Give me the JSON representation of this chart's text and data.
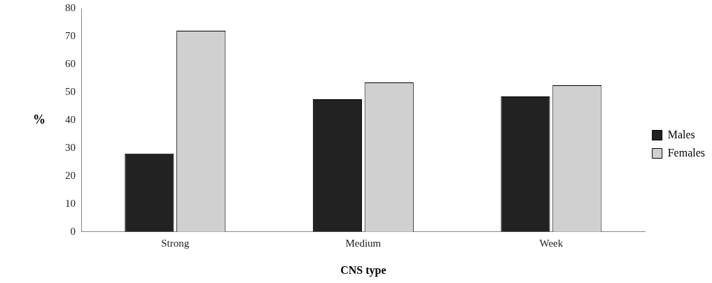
{
  "chart_data": {
    "type": "bar",
    "xlabel": "CNS type",
    "ylabel": "%",
    "categories": [
      "Strong",
      "Medium",
      "Week"
    ],
    "series": [
      {
        "name": "Males",
        "color": "#222222",
        "values": [
          28,
          47.5,
          48.5
        ]
      },
      {
        "name": "Females",
        "color": "#d0d0d0",
        "values": [
          72,
          53.5,
          52.5
        ]
      }
    ],
    "ylim": [
      0,
      80
    ],
    "yticks": [
      0,
      10,
      20,
      30,
      40,
      50,
      60,
      70,
      80
    ],
    "grid": false,
    "legend": "right"
  }
}
